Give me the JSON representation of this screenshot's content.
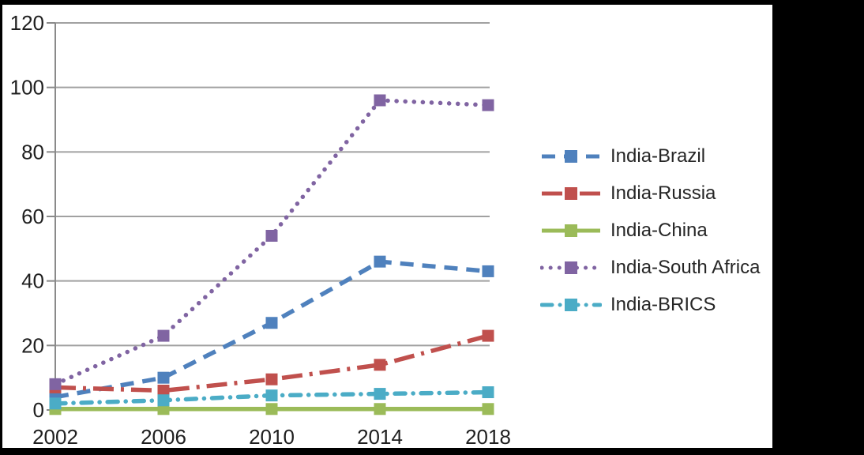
{
  "chart_data": {
    "type": "line",
    "title": "",
    "xlabel": "",
    "ylabel": "",
    "categories": [
      "2002",
      "2006",
      "2010",
      "2014",
      "2018"
    ],
    "series": [
      {
        "name": "India-Brazil",
        "color": "#4F81BD",
        "line_style": "dashed",
        "marker": "square",
        "values": [
          4,
          10,
          27,
          46,
          43
        ]
      },
      {
        "name": "India-Russia",
        "color": "#C0504D",
        "line_style": "long-dash-dot",
        "marker": "square",
        "values": [
          7,
          6,
          9.5,
          14,
          23
        ]
      },
      {
        "name": "India-China",
        "color": "#9BBB59",
        "line_style": "solid",
        "marker": "square",
        "values": [
          0.3,
          0.3,
          0.3,
          0.3,
          0.3
        ]
      },
      {
        "name": "India-South Africa",
        "color": "#8064A2",
        "line_style": "dotted",
        "marker": "square",
        "values": [
          8,
          23,
          54,
          96,
          94.5
        ]
      },
      {
        "name": "India-BRICS",
        "color": "#4BACC6",
        "line_style": "dash-dot",
        "marker": "square",
        "values": [
          2,
          3,
          4.5,
          5,
          5.5
        ]
      }
    ],
    "ylim": [
      0,
      120
    ],
    "ytick_interval": 20,
    "ytick_labels": [
      "0",
      "20",
      "40",
      "60",
      "80",
      "100",
      "120"
    ],
    "xtick_labels": [
      "2002",
      "2006",
      "2010",
      "2014",
      "2018"
    ],
    "grid": true,
    "legend_position": "right-center"
  },
  "colors": {
    "background": "#ffffff",
    "frame_bars": "#000000",
    "gridline": "#a1a1a1",
    "axis": "#8a8a8a",
    "tick_text": "#1f1f1f",
    "legend_text": "#262626"
  }
}
